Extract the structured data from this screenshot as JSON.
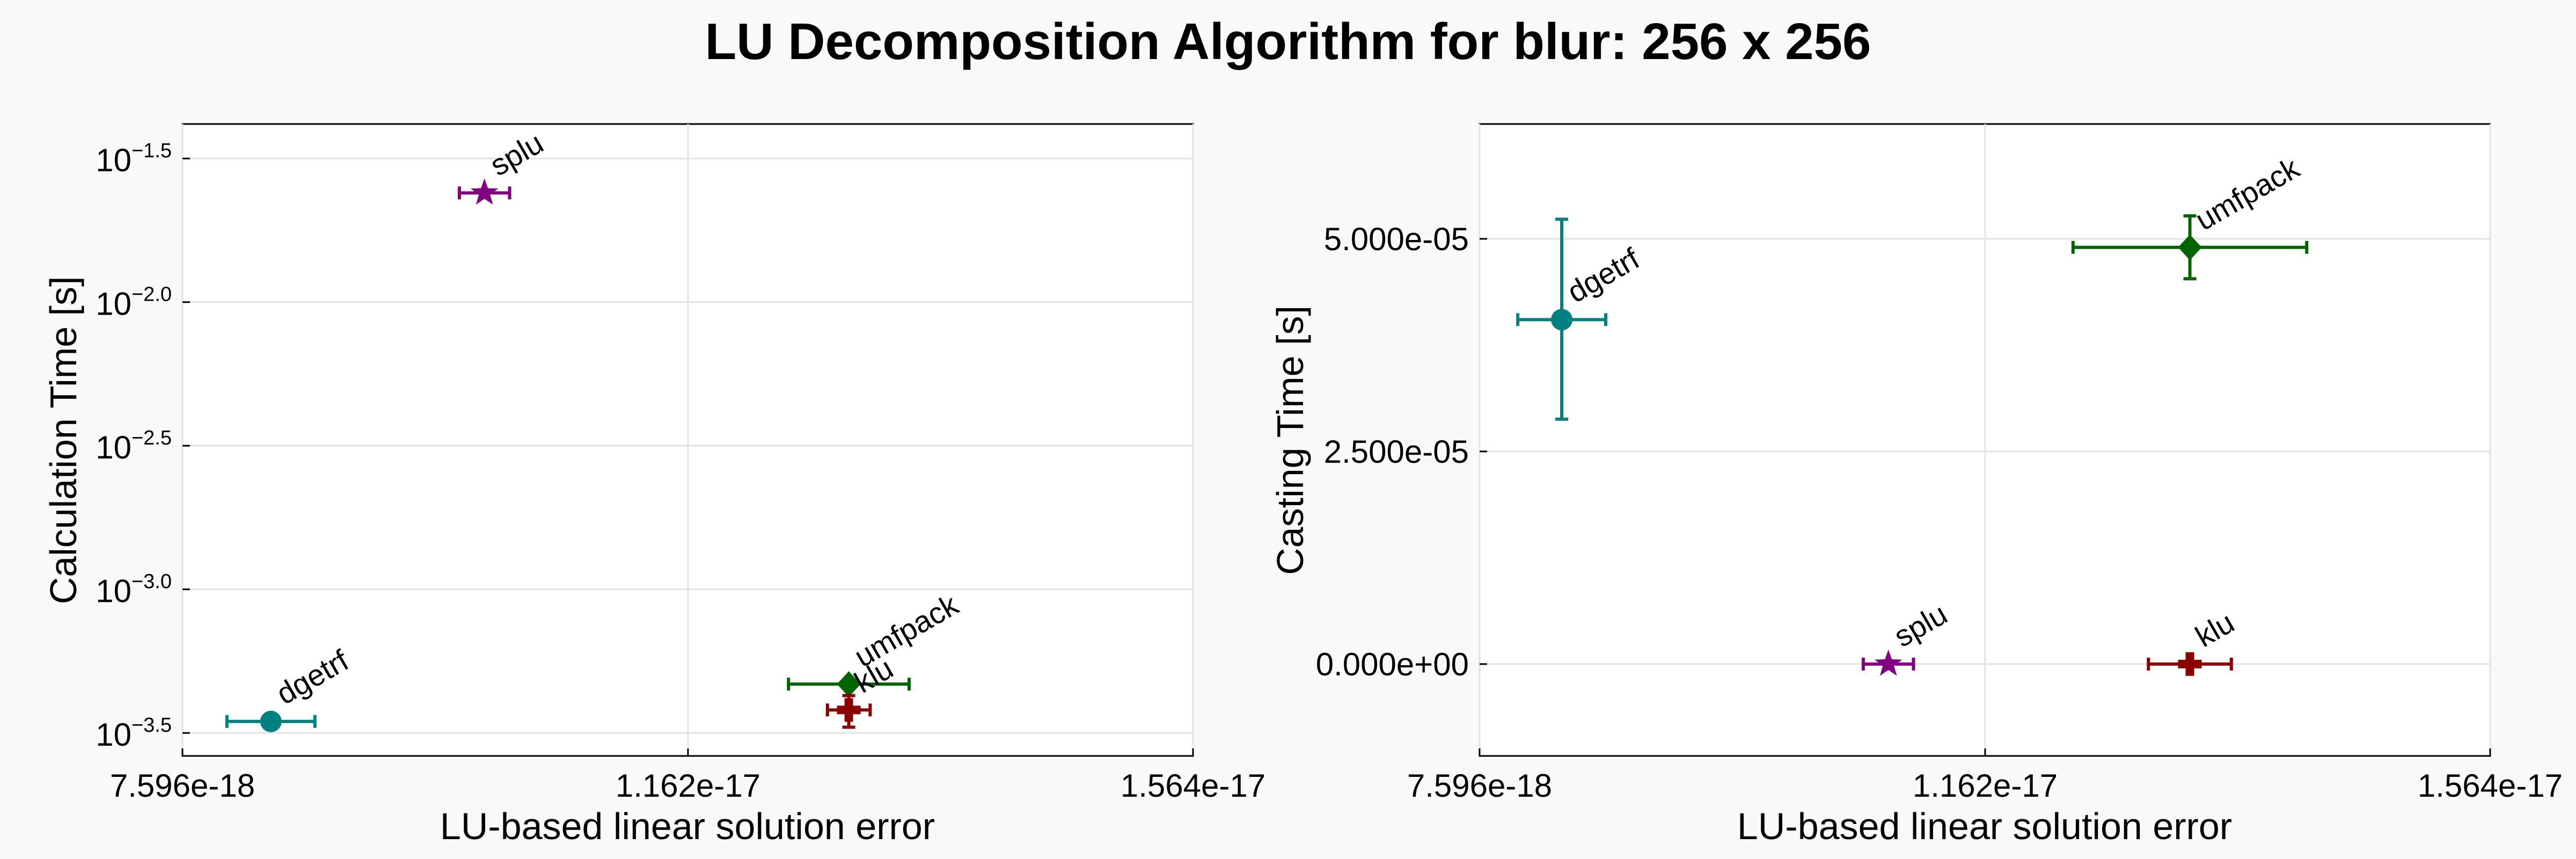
{
  "colors": {
    "dgetrf": "#008080",
    "splu": "#800080",
    "umfpack": "#006400",
    "klu": "#8b0000",
    "background": "#f9f9f9",
    "plot_background": "#ffffff"
  },
  "chart_data": {
    "title": "LU Decomposition Algorithm for blur: 256 x 256",
    "panels": [
      {
        "type": "scatter",
        "xlabel": "LU-based linear solution error",
        "ylabel": "Calculation Time [s]",
        "xscale": "linear",
        "yscale": "log10",
        "xlim": [
          7.596e-18,
          1.564e-17
        ],
        "ylim_log10": [
          -3.58,
          -1.38
        ],
        "grid": true,
        "xticks": [
          {
            "value": 7.596e-18,
            "label": "7.596e-18"
          },
          {
            "value": 1.162e-17,
            "label": "1.162e-17"
          },
          {
            "value": 1.564e-17,
            "label": "1.564e-17"
          }
        ],
        "yticks": [
          {
            "value": -1.5,
            "base": "10",
            "exp": "−1.5"
          },
          {
            "value": -2.0,
            "base": "10",
            "exp": "−2.0"
          },
          {
            "value": -2.5,
            "base": "10",
            "exp": "−2.5"
          },
          {
            "value": -3.0,
            "base": "10",
            "exp": "−3.0"
          },
          {
            "value": -3.5,
            "base": "10",
            "exp": "−3.5"
          }
        ],
        "series": [
          {
            "name": "dgetrf",
            "marker": "circle",
            "x": 8.3e-18,
            "xerr": 3.5e-19,
            "y": -3.46,
            "yerr_low": 0,
            "yerr_high": 0,
            "label_offset": [
              25,
              -30
            ]
          },
          {
            "name": "splu",
            "marker": "star",
            "x": 1e-17,
            "xerr": 2e-19,
            "y": -1.62,
            "yerr_low": 0,
            "yerr_high": 0,
            "label_offset": [
              25,
              -30
            ]
          },
          {
            "name": "umfpack",
            "marker": "diamond",
            "x": 1.29e-17,
            "xerr": 4.8e-19,
            "y": -3.33,
            "yerr_low": 0,
            "yerr_high": 0,
            "label_offset": [
              25,
              -30
            ]
          },
          {
            "name": "klu",
            "marker": "cross",
            "x": 1.29e-17,
            "xerr": 1.7e-19,
            "y": -3.42,
            "yerr_low": 0.06,
            "yerr_high": 0.05,
            "label_offset": [
              25,
              -30
            ]
          }
        ]
      },
      {
        "type": "scatter",
        "xlabel": "LU-based linear solution error",
        "ylabel": "Casting Time [s]",
        "xscale": "linear",
        "yscale": "linear",
        "xlim": [
          7.596e-18,
          1.564e-17
        ],
        "ylim": [
          -1.08e-05,
          6.35e-05
        ],
        "grid": true,
        "xticks": [
          {
            "value": 7.596e-18,
            "label": "7.596e-18"
          },
          {
            "value": 1.162e-17,
            "label": "1.162e-17"
          },
          {
            "value": 1.564e-17,
            "label": "1.564e-17"
          }
        ],
        "yticks": [
          {
            "value": 5e-05,
            "label": "5.000e-05"
          },
          {
            "value": 2.5e-05,
            "label": "2.500e-05"
          },
          {
            "value": 0.0,
            "label": "0.000e+00"
          }
        ],
        "series": [
          {
            "name": "dgetrf",
            "marker": "circle",
            "x": 8.25e-18,
            "xerr": 3.5e-19,
            "y": 4.05e-05,
            "yerr_low": 1.17e-05,
            "yerr_high": 1.18e-05,
            "label_offset": [
              25,
              -30
            ]
          },
          {
            "name": "splu",
            "marker": "star",
            "x": 1.085e-17,
            "xerr": 2e-19,
            "y": 0.0,
            "yerr_low": 0,
            "yerr_high": 0,
            "label_offset": [
              25,
              -30
            ]
          },
          {
            "name": "umfpack",
            "marker": "diamond",
            "x": 1.325e-17,
            "xerr": 9.3e-19,
            "y": 4.9e-05,
            "yerr_low": 3.7e-06,
            "yerr_high": 3.7e-06,
            "label_offset": [
              25,
              -30
            ]
          },
          {
            "name": "klu",
            "marker": "cross",
            "x": 1.325e-17,
            "xerr": 3.3e-19,
            "y": 0.0,
            "yerr_low": 0,
            "yerr_high": 0,
            "label_offset": [
              25,
              -30
            ]
          }
        ]
      }
    ]
  }
}
